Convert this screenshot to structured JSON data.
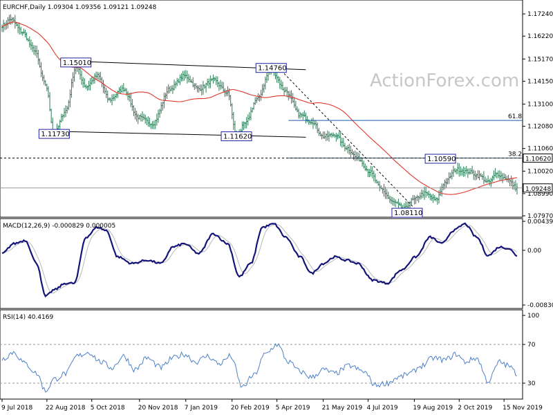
{
  "chart_data": {
    "type": "candlestick",
    "colors": {
      "background": "#ffffff",
      "bars": "#2d7a55",
      "ma": "#e0352b",
      "macd": "#14147a",
      "signal": "#b8b8b8",
      "rsi": "#4d80c8",
      "box_border": "#2020a0",
      "level_line": "#1a5aa8"
    },
    "main": {
      "header": "EURCHF,Daily  1.09304 1.09356 1.09121 1.09248",
      "ylim": [
        1.0797,
        1.1772
      ],
      "ticks": [
        "1.17240",
        "1.16220",
        "1.15170",
        "1.14150",
        "1.13100",
        "1.12080",
        "1.11060",
        "1.10020",
        "1.08990",
        "1.07970"
      ],
      "current_price": "1.09248",
      "level_6200": "1.10620",
      "fib_61_8_label": "61.8",
      "fib_38_2_label": "38.2",
      "fib_61_8_value": 1.1235,
      "fib_38_2_value": 1.1062,
      "watermark": "ActionForex.com",
      "annotations": [
        {
          "label": "1.15010",
          "date_index": 51,
          "price": 1.1501
        },
        {
          "label": "1.14760",
          "date_index": 186,
          "price": 1.1476
        },
        {
          "label": "1.11730",
          "date_index": 36,
          "price": 1.1173
        },
        {
          "label": "1.11620",
          "date_index": 162,
          "price": 1.1162
        },
        {
          "label": "1.10590",
          "date_index": 303,
          "price": 1.1059
        },
        {
          "label": "1.08110",
          "date_index": 280,
          "price": 1.0811
        }
      ],
      "key_points": [
        [
          0,
          1.167
        ],
        [
          6,
          1.17
        ],
        [
          14,
          1.164
        ],
        [
          22,
          1.156
        ],
        [
          30,
          1.14
        ],
        [
          36,
          1.1173
        ],
        [
          44,
          1.128
        ],
        [
          51,
          1.148
        ],
        [
          58,
          1.139
        ],
        [
          66,
          1.144
        ],
        [
          74,
          1.133
        ],
        [
          84,
          1.138
        ],
        [
          94,
          1.125
        ],
        [
          104,
          1.122
        ],
        [
          116,
          1.138
        ],
        [
          126,
          1.144
        ],
        [
          136,
          1.138
        ],
        [
          146,
          1.142
        ],
        [
          156,
          1.136
        ],
        [
          162,
          1.1162
        ],
        [
          168,
          1.122
        ],
        [
          176,
          1.133
        ],
        [
          186,
          1.147
        ],
        [
          196,
          1.137
        ],
        [
          206,
          1.126
        ],
        [
          214,
          1.123
        ],
        [
          222,
          1.116
        ],
        [
          230,
          1.117
        ],
        [
          238,
          1.111
        ],
        [
          246,
          1.106
        ],
        [
          254,
          1.1
        ],
        [
          262,
          1.092
        ],
        [
          270,
          1.086
        ],
        [
          278,
          1.083
        ],
        [
          284,
          1.087
        ],
        [
          292,
          1.09
        ],
        [
          300,
          1.087
        ],
        [
          306,
          1.095
        ],
        [
          314,
          1.101
        ],
        [
          322,
          1.1
        ],
        [
          330,
          1.098
        ],
        [
          336,
          1.095
        ],
        [
          342,
          1.099
        ],
        [
          348,
          1.097
        ],
        [
          356,
          1.0925
        ]
      ]
    },
    "macd": {
      "header": "MACD(12,26,9) -0.000829 0.000005",
      "ylim": [
        -0.008306,
        0.004398
      ],
      "ticks": [
        "0.004398",
        "0.00",
        "-0.008306"
      ],
      "key_points": [
        [
          0,
          -0.0005
        ],
        [
          8,
          0.001
        ],
        [
          16,
          0.0015
        ],
        [
          24,
          -0.002
        ],
        [
          30,
          -0.007
        ],
        [
          36,
          -0.006
        ],
        [
          44,
          -0.005
        ],
        [
          50,
          -0.005
        ],
        [
          58,
          0.002
        ],
        [
          66,
          0.0035
        ],
        [
          72,
          0.003
        ],
        [
          80,
          -0.001
        ],
        [
          90,
          -0.002
        ],
        [
          100,
          -0.0015
        ],
        [
          110,
          -0.002
        ],
        [
          118,
          0.0005
        ],
        [
          126,
          0.001
        ],
        [
          136,
          -0.0005
        ],
        [
          146,
          0.0025
        ],
        [
          156,
          0.001
        ],
        [
          164,
          -0.004
        ],
        [
          172,
          -0.002
        ],
        [
          180,
          0.0035
        ],
        [
          188,
          0.004
        ],
        [
          196,
          0.002
        ],
        [
          206,
          -0.001
        ],
        [
          214,
          -0.0035
        ],
        [
          222,
          -0.002
        ],
        [
          230,
          -0.001
        ],
        [
          238,
          -0.0015
        ],
        [
          246,
          -0.002
        ],
        [
          256,
          -0.0045
        ],
        [
          266,
          -0.005
        ],
        [
          276,
          -0.003
        ],
        [
          286,
          -0.001
        ],
        [
          296,
          0.002
        ],
        [
          304,
          0.001
        ],
        [
          312,
          0.003
        ],
        [
          320,
          0.004
        ],
        [
          328,
          0.002
        ],
        [
          336,
          -0.0008
        ],
        [
          344,
          0.0005
        ],
        [
          350,
          0.0003
        ],
        [
          356,
          -0.0008
        ]
      ]
    },
    "rsi": {
      "header": "RSI(14) 40.4169",
      "ylim": [
        0,
        100
      ],
      "ticks": [
        "100",
        "70",
        "30",
        "0"
      ],
      "levels": [
        70,
        30
      ],
      "key_points": [
        [
          0,
          55
        ],
        [
          8,
          62
        ],
        [
          16,
          50
        ],
        [
          24,
          40
        ],
        [
          30,
          22
        ],
        [
          36,
          34
        ],
        [
          44,
          40
        ],
        [
          52,
          58
        ],
        [
          60,
          62
        ],
        [
          68,
          52
        ],
        [
          76,
          46
        ],
        [
          84,
          58
        ],
        [
          92,
          44
        ],
        [
          100,
          56
        ],
        [
          110,
          46
        ],
        [
          118,
          56
        ],
        [
          126,
          60
        ],
        [
          134,
          52
        ],
        [
          142,
          58
        ],
        [
          150,
          50
        ],
        [
          158,
          58
        ],
        [
          166,
          26
        ],
        [
          174,
          38
        ],
        [
          182,
          60
        ],
        [
          190,
          70
        ],
        [
          198,
          52
        ],
        [
          206,
          42
        ],
        [
          214,
          36
        ],
        [
          222,
          44
        ],
        [
          230,
          40
        ],
        [
          240,
          48
        ],
        [
          250,
          42
        ],
        [
          258,
          28
        ],
        [
          266,
          30
        ],
        [
          274,
          36
        ],
        [
          282,
          40
        ],
        [
          290,
          48
        ],
        [
          298,
          56
        ],
        [
          306,
          54
        ],
        [
          314,
          60
        ],
        [
          320,
          52
        ],
        [
          328,
          56
        ],
        [
          336,
          32
        ],
        [
          344,
          52
        ],
        [
          350,
          48
        ],
        [
          356,
          40
        ]
      ]
    },
    "x_axis": {
      "total_bars": 357,
      "labels": [
        {
          "label": "9 Jul 2018",
          "index": 0
        },
        {
          "label": "22 Aug 2018",
          "index": 31
        },
        {
          "label": "5 Oct 2018",
          "index": 62
        },
        {
          "label": "20 Nov 2018",
          "index": 95
        },
        {
          "label": "7 Jan 2019",
          "index": 127
        },
        {
          "label": "20 Feb 2019",
          "index": 159
        },
        {
          "label": "5 Apr 2019",
          "index": 190
        },
        {
          "label": "21 May 2019",
          "index": 222
        },
        {
          "label": "4 Jul 2019",
          "index": 253
        },
        {
          "label": "19 Aug 2019",
          "index": 285
        },
        {
          "label": "2 Oct 2019",
          "index": 316
        },
        {
          "label": "15 Nov 2019",
          "index": 347
        }
      ]
    }
  }
}
